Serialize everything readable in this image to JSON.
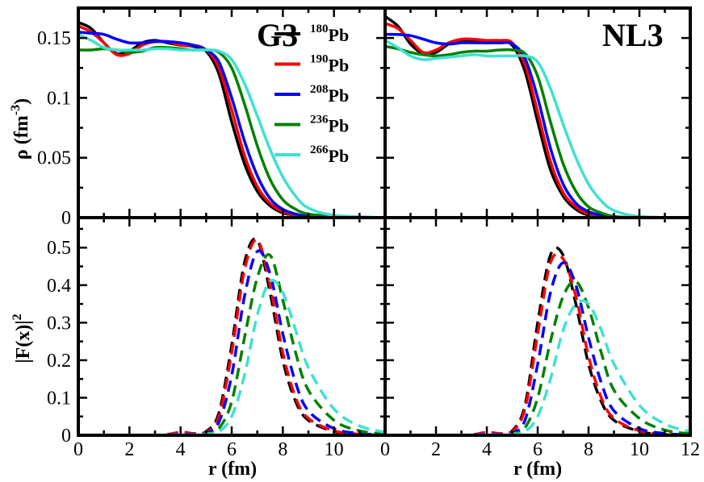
{
  "chart_data": [
    {
      "type": "line",
      "panel": "top-left",
      "title": "G3",
      "ylabel_html": "ρ (fm⁻³)",
      "ylabel_main": "ρ (fm",
      "ylabel_sup": "-3",
      "ylabel_end": ")",
      "xlim": [
        0,
        12
      ],
      "ylim": [
        0,
        0.175
      ],
      "yticks": [
        0,
        0.05,
        0.1,
        0.15
      ],
      "ytick_labels": [
        "0",
        "0.05",
        "0.1",
        "0.15"
      ],
      "line_style": "solid",
      "series": [
        {
          "name": "180Pb",
          "color": "#000000",
          "x": [
            0,
            0.5,
            1,
            1.5,
            2,
            2.5,
            3,
            3.5,
            4,
            4.5,
            5,
            5.5,
            6,
            6.5,
            7,
            7.5,
            8,
            8.5,
            9,
            10,
            12
          ],
          "y": [
            0.163,
            0.158,
            0.146,
            0.137,
            0.139,
            0.146,
            0.148,
            0.146,
            0.144,
            0.143,
            0.139,
            0.12,
            0.08,
            0.045,
            0.022,
            0.01,
            0.004,
            0.002,
            0.001,
            0,
            0
          ]
        },
        {
          "name": "190Pb",
          "color": "#ff0000",
          "x": [
            0,
            0.5,
            1,
            1.5,
            2,
            2.5,
            3,
            3.5,
            4,
            4.5,
            5,
            5.5,
            6,
            6.5,
            7,
            7.5,
            8,
            8.5,
            9,
            10,
            12
          ],
          "y": [
            0.16,
            0.155,
            0.146,
            0.136,
            0.137,
            0.144,
            0.147,
            0.147,
            0.144,
            0.144,
            0.14,
            0.125,
            0.09,
            0.052,
            0.026,
            0.012,
            0.005,
            0.002,
            0.001,
            0,
            0
          ]
        },
        {
          "name": "208Pb",
          "color": "#0000ff",
          "x": [
            0,
            0.5,
            1,
            1.5,
            2,
            2.5,
            3,
            3.5,
            4,
            4.5,
            5,
            5.5,
            6,
            6.5,
            7,
            7.5,
            8,
            8.5,
            9,
            10,
            12
          ],
          "y": [
            0.155,
            0.154,
            0.153,
            0.149,
            0.146,
            0.146,
            0.147,
            0.147,
            0.146,
            0.144,
            0.14,
            0.13,
            0.1,
            0.064,
            0.035,
            0.016,
            0.007,
            0.003,
            0.001,
            0,
            0
          ]
        },
        {
          "name": "236Pb",
          "color": "#008000",
          "x": [
            0,
            0.5,
            1,
            1.5,
            2,
            2.5,
            3,
            3.5,
            4,
            4.5,
            5,
            5.5,
            6,
            6.5,
            7,
            7.5,
            8,
            8.5,
            9,
            10,
            12
          ],
          "y": [
            0.14,
            0.14,
            0.141,
            0.14,
            0.138,
            0.139,
            0.142,
            0.142,
            0.141,
            0.14,
            0.14,
            0.138,
            0.125,
            0.095,
            0.06,
            0.032,
            0.015,
            0.007,
            0.003,
            0.001,
            0
          ]
        },
        {
          "name": "266Pb",
          "color": "#40e0d0",
          "x": [
            0,
            0.5,
            1,
            1.5,
            2,
            2.5,
            3,
            3.5,
            4,
            4.5,
            5,
            5.5,
            6,
            6.5,
            7,
            7.5,
            8,
            8.5,
            9,
            10,
            12
          ],
          "y": [
            0.153,
            0.148,
            0.142,
            0.14,
            0.14,
            0.14,
            0.141,
            0.141,
            0.14,
            0.14,
            0.14,
            0.139,
            0.132,
            0.112,
            0.085,
            0.057,
            0.034,
            0.018,
            0.008,
            0.002,
            0
          ]
        }
      ]
    },
    {
      "type": "line",
      "panel": "top-right",
      "title": "NL3",
      "xlim": [
        0,
        12
      ],
      "ylim": [
        0,
        0.175
      ],
      "line_style": "solid",
      "series": [
        {
          "name": "180Pb",
          "color": "#000000",
          "x": [
            0,
            0.5,
            1,
            1.5,
            2,
            2.5,
            3,
            3.5,
            4,
            4.5,
            5,
            5.5,
            6,
            6.5,
            7,
            7.5,
            8,
            8.5,
            9,
            10,
            12
          ],
          "y": [
            0.168,
            0.16,
            0.145,
            0.137,
            0.138,
            0.145,
            0.148,
            0.147,
            0.146,
            0.146,
            0.144,
            0.122,
            0.08,
            0.04,
            0.018,
            0.007,
            0.002,
            0.001,
            0,
            0,
            0
          ]
        },
        {
          "name": "190Pb",
          "color": "#ff0000",
          "x": [
            0,
            0.5,
            1,
            1.5,
            2,
            2.5,
            3,
            3.5,
            4,
            4.5,
            5,
            5.5,
            6,
            6.5,
            7,
            7.5,
            8,
            8.5,
            9,
            10,
            12
          ],
          "y": [
            0.162,
            0.158,
            0.148,
            0.138,
            0.14,
            0.146,
            0.149,
            0.149,
            0.148,
            0.148,
            0.146,
            0.128,
            0.088,
            0.047,
            0.021,
            0.009,
            0.003,
            0.001,
            0,
            0,
            0
          ]
        },
        {
          "name": "208Pb",
          "color": "#0000ff",
          "x": [
            0,
            0.5,
            1,
            1.5,
            2,
            2.5,
            3,
            3.5,
            4,
            4.5,
            5,
            5.5,
            6,
            6.5,
            7,
            7.5,
            8,
            8.5,
            9,
            10,
            12
          ],
          "y": [
            0.153,
            0.153,
            0.152,
            0.149,
            0.146,
            0.145,
            0.146,
            0.146,
            0.146,
            0.146,
            0.145,
            0.133,
            0.1,
            0.058,
            0.028,
            0.012,
            0.005,
            0.002,
            0,
            0,
            0
          ]
        },
        {
          "name": "236Pb",
          "color": "#008000",
          "x": [
            0,
            0.5,
            1,
            1.5,
            2,
            2.5,
            3,
            3.5,
            4,
            4.5,
            5,
            5.5,
            6,
            6.5,
            7,
            7.5,
            8,
            8.5,
            9,
            10,
            12
          ],
          "y": [
            0.143,
            0.141,
            0.138,
            0.136,
            0.135,
            0.136,
            0.138,
            0.139,
            0.139,
            0.14,
            0.14,
            0.137,
            0.118,
            0.08,
            0.045,
            0.022,
            0.009,
            0.004,
            0.001,
            0,
            0
          ]
        },
        {
          "name": "266Pb",
          "color": "#40e0d0",
          "x": [
            0,
            0.5,
            1,
            1.5,
            2,
            2.5,
            3,
            3.5,
            4,
            4.5,
            5,
            5.5,
            6,
            6.5,
            7,
            7.5,
            8,
            8.5,
            9,
            10,
            12
          ],
          "y": [
            0.148,
            0.142,
            0.135,
            0.132,
            0.133,
            0.134,
            0.135,
            0.136,
            0.135,
            0.135,
            0.135,
            0.135,
            0.13,
            0.108,
            0.078,
            0.05,
            0.028,
            0.014,
            0.006,
            0.001,
            0
          ]
        }
      ]
    },
    {
      "type": "line",
      "panel": "bottom-left",
      "ylabel_main": "|F(x)|",
      "ylabel_sup": "2",
      "xlabel": "r (fm)",
      "xlim": [
        0,
        12
      ],
      "ylim": [
        0,
        0.58
      ],
      "xticks": [
        0,
        2,
        4,
        6,
        8,
        10
      ],
      "xtick_labels": [
        "0",
        "2",
        "4",
        "6",
        "8",
        "10"
      ],
      "yticks": [
        0,
        0.1,
        0.2,
        0.3,
        0.4,
        0.5
      ],
      "ytick_labels": [
        "0",
        "0.1",
        "0.2",
        "0.3",
        "0.4",
        "0.5"
      ],
      "line_style": "dashed",
      "series": [
        {
          "name": "180Pb",
          "color": "#000000",
          "x": [
            0,
            3,
            4,
            4.5,
            5,
            5.5,
            6,
            6.5,
            7,
            7.5,
            8,
            8.5,
            9,
            10,
            11,
            12
          ],
          "y": [
            0,
            0,
            0.008,
            0.004,
            0.01,
            0.06,
            0.24,
            0.46,
            0.52,
            0.38,
            0.2,
            0.09,
            0.04,
            0.01,
            0.002,
            0
          ]
        },
        {
          "name": "190Pb",
          "color": "#ff0000",
          "x": [
            0,
            3,
            4,
            4.5,
            5,
            5.5,
            6,
            6.5,
            7,
            7.5,
            8,
            8.5,
            9,
            10,
            11,
            12
          ],
          "y": [
            0,
            0,
            0.008,
            0.005,
            0.008,
            0.05,
            0.22,
            0.44,
            0.52,
            0.4,
            0.22,
            0.1,
            0.045,
            0.012,
            0.003,
            0
          ]
        },
        {
          "name": "208Pb",
          "color": "#0000ff",
          "x": [
            0,
            3,
            4,
            4.5,
            5,
            5.5,
            6,
            6.5,
            7,
            7.5,
            8,
            8.5,
            9,
            10,
            11,
            12
          ],
          "y": [
            0,
            0,
            0.004,
            0.003,
            0.006,
            0.035,
            0.16,
            0.37,
            0.49,
            0.43,
            0.27,
            0.14,
            0.065,
            0.018,
            0.005,
            0.001
          ]
        },
        {
          "name": "236Pb",
          "color": "#008000",
          "x": [
            0,
            3,
            4,
            4.5,
            5,
            5.5,
            6,
            6.5,
            7,
            7.5,
            8,
            8.5,
            9,
            10,
            11,
            12
          ],
          "y": [
            0,
            0,
            0.002,
            0.002,
            0.004,
            0.018,
            0.09,
            0.26,
            0.42,
            0.48,
            0.36,
            0.22,
            0.12,
            0.04,
            0.012,
            0.003
          ]
        },
        {
          "name": "266Pb",
          "color": "#40e0d0",
          "x": [
            0,
            3,
            4,
            4.5,
            5,
            5.5,
            6,
            6.5,
            7,
            7.5,
            8,
            8.5,
            9,
            10,
            11,
            12
          ],
          "y": [
            0,
            0,
            0.002,
            0.001,
            0.003,
            0.01,
            0.05,
            0.16,
            0.32,
            0.41,
            0.38,
            0.28,
            0.18,
            0.07,
            0.025,
            0.008
          ]
        }
      ]
    },
    {
      "type": "line",
      "panel": "bottom-right",
      "xlabel": "r (fm)",
      "xlim": [
        0,
        12
      ],
      "ylim": [
        0,
        0.58
      ],
      "xticks": [
        0,
        2,
        4,
        6,
        8,
        10,
        12
      ],
      "xtick_labels": [
        "0",
        "2",
        "4",
        "6",
        "8",
        "10",
        "12"
      ],
      "line_style": "dashed",
      "series": [
        {
          "name": "180Pb",
          "color": "#000000",
          "x": [
            0,
            3,
            4,
            4.5,
            5,
            5.5,
            6,
            6.5,
            7,
            7.5,
            8,
            8.5,
            9,
            10,
            11,
            12
          ],
          "y": [
            0,
            0,
            0.007,
            0.004,
            0.012,
            0.08,
            0.3,
            0.48,
            0.48,
            0.35,
            0.19,
            0.09,
            0.04,
            0.01,
            0.002,
            0
          ]
        },
        {
          "name": "190Pb",
          "color": "#ff0000",
          "x": [
            0,
            3,
            4,
            4.5,
            5,
            5.5,
            6,
            6.5,
            7,
            7.5,
            8,
            8.5,
            9,
            10,
            11,
            12
          ],
          "y": [
            0,
            0,
            0.008,
            0.005,
            0.01,
            0.07,
            0.27,
            0.46,
            0.47,
            0.37,
            0.21,
            0.1,
            0.045,
            0.012,
            0.003,
            0
          ]
        },
        {
          "name": "208Pb",
          "color": "#0000ff",
          "x": [
            0,
            3,
            4,
            4.5,
            5,
            5.5,
            6,
            6.5,
            7,
            7.5,
            8,
            8.5,
            9,
            10,
            11,
            12
          ],
          "y": [
            0,
            0,
            0.004,
            0.003,
            0.006,
            0.04,
            0.19,
            0.38,
            0.46,
            0.4,
            0.26,
            0.14,
            0.065,
            0.018,
            0.005,
            0.001
          ]
        },
        {
          "name": "236Pb",
          "color": "#008000",
          "x": [
            0,
            3,
            4,
            4.5,
            5,
            5.5,
            6,
            6.5,
            7,
            7.5,
            8,
            8.5,
            9,
            10,
            11,
            12
          ],
          "y": [
            0,
            0,
            0.002,
            0.002,
            0.004,
            0.02,
            0.1,
            0.25,
            0.37,
            0.41,
            0.34,
            0.22,
            0.12,
            0.045,
            0.014,
            0.004
          ]
        },
        {
          "name": "266Pb",
          "color": "#40e0d0",
          "x": [
            0,
            3,
            4,
            4.5,
            5,
            5.5,
            6,
            6.5,
            7,
            7.5,
            8,
            8.5,
            9,
            10,
            11,
            12
          ],
          "y": [
            0,
            0,
            0.002,
            0.001,
            0.003,
            0.01,
            0.05,
            0.15,
            0.28,
            0.35,
            0.35,
            0.28,
            0.19,
            0.08,
            0.03,
            0.01
          ]
        }
      ]
    }
  ],
  "legend": {
    "placement": "top-left panel, center",
    "entries": [
      {
        "mass": "180",
        "element": "Pb",
        "color": "#000000"
      },
      {
        "mass": "190",
        "element": "Pb",
        "color": "#ff0000"
      },
      {
        "mass": "208",
        "element": "Pb",
        "color": "#0000ff"
      },
      {
        "mass": "236",
        "element": "Pb",
        "color": "#008000"
      },
      {
        "mass": "266",
        "element": "Pb",
        "color": "#40e0d0"
      }
    ]
  }
}
